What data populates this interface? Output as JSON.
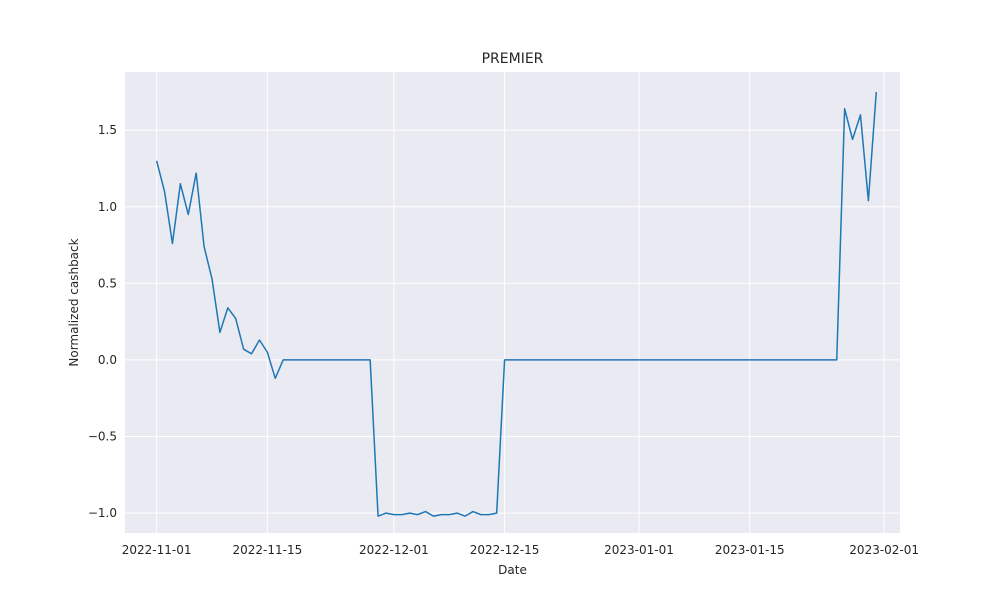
{
  "chart_data": {
    "type": "line",
    "title": "PREMIER",
    "xlabel": "Date",
    "ylabel": "Normalized cashback",
    "grid": true,
    "xlim": [
      "2022-10-28",
      "2023-02-03"
    ],
    "ylim": [
      -1.13,
      1.88
    ],
    "x_ticks": [
      "2022-11-01",
      "2022-11-15",
      "2022-12-01",
      "2022-12-15",
      "2023-01-01",
      "2023-01-15",
      "2023-02-01"
    ],
    "y_ticks": [
      -1.0,
      -0.5,
      0.0,
      0.5,
      1.0,
      1.5
    ],
    "y_tick_labels": [
      "−1.0",
      "−0.5",
      "0.0",
      "0.5",
      "1.0",
      "1.5"
    ],
    "line_color": "#1f77b4",
    "background_color": "#eaeaf2",
    "series": [
      {
        "x": [
          "2022-11-01",
          "2022-11-02",
          "2022-11-03",
          "2022-11-04",
          "2022-11-05",
          "2022-11-06",
          "2022-11-07",
          "2022-11-08",
          "2022-11-09",
          "2022-11-10",
          "2022-11-11",
          "2022-11-12",
          "2022-11-13",
          "2022-11-14",
          "2022-11-15",
          "2022-11-16",
          "2022-11-17",
          "2022-11-27",
          "2022-11-28",
          "2022-11-29",
          "2022-11-30",
          "2022-12-01",
          "2022-12-02",
          "2022-12-03",
          "2022-12-04",
          "2022-12-05",
          "2022-12-06",
          "2022-12-07",
          "2022-12-08",
          "2022-12-09",
          "2022-12-10",
          "2022-12-11",
          "2022-12-12",
          "2022-12-13",
          "2022-12-14",
          "2022-12-15",
          "2022-12-16",
          "2023-01-25",
          "2023-01-26",
          "2023-01-27",
          "2023-01-28",
          "2023-01-29",
          "2023-01-30",
          "2023-01-31"
        ],
        "y": [
          1.3,
          1.1,
          0.76,
          1.15,
          0.95,
          1.22,
          0.74,
          0.53,
          0.18,
          0.34,
          0.27,
          0.07,
          0.04,
          0.13,
          0.05,
          -0.12,
          0.0,
          0.0,
          0.0,
          -1.02,
          -1.0,
          -1.01,
          -1.01,
          -1.0,
          -1.01,
          -0.99,
          -1.02,
          -1.01,
          -1.01,
          -1.0,
          -1.02,
          -0.99,
          -1.01,
          -1.01,
          -1.0,
          0.0,
          0.0,
          0.0,
          0.0,
          1.64,
          1.44,
          1.6,
          1.04,
          1.75
        ]
      }
    ]
  }
}
